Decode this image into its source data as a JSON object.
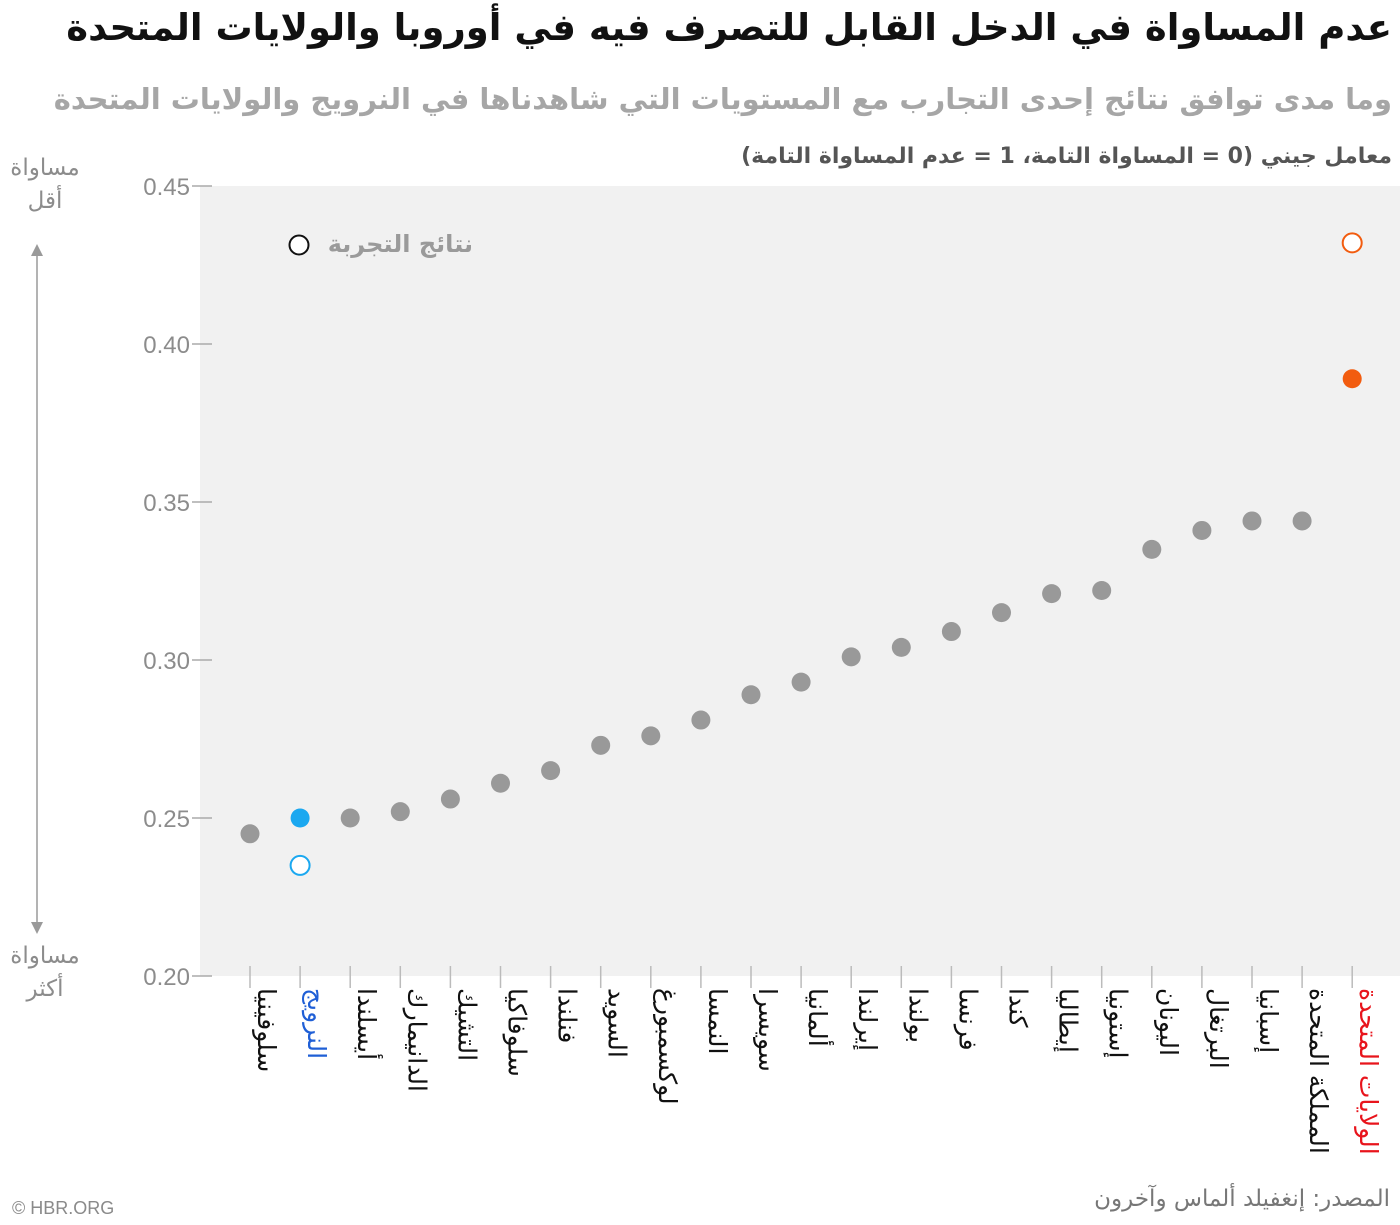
{
  "chart_data": {
    "type": "scatter",
    "title": "عدم المساواة في الدخل القابل للتصرف فيه في أوروبا والولايات المتحدة",
    "subtitle": "وما مدى توافق نتائج إحدى التجارب مع المستويات التي شاهدناها في النرويج والولايات المتحدة",
    "ylabel": "معامل جيني (0 = المساواة التامة، 1 = عدم المساواة التامة)",
    "ylim": [
      0.2,
      0.45
    ],
    "yticks": [
      "0.45",
      "0.40",
      "0.35",
      "0.30",
      "0.25",
      "0.20"
    ],
    "ytick_values": [
      0.45,
      0.4,
      0.35,
      0.3,
      0.25,
      0.2
    ],
    "grid": false,
    "legend": "top-left",
    "legend_label": "نتائج التجربة",
    "axis_top_label": [
      "مساواة",
      "أقل"
    ],
    "axis_bottom_label": [
      "مساواة",
      "أكثر"
    ],
    "categories": [
      "سلوفينيا",
      "النرويج",
      "أيسلندا",
      "الدانيمارك",
      "التشيك",
      "سلوفاكيا",
      "فنلندا",
      "السويد",
      "لوكسمبورغ",
      "النمسا",
      "سويسرا",
      "ألمانيا",
      "إيرلندا",
      "بولندا",
      "فرنسا",
      "كندا",
      "إيطاليا",
      "إستونيا",
      "اليونان",
      "البرتغال",
      "إسبانيا",
      "المملكة المتحدة",
      "الولايات المتحدة"
    ],
    "category_colors": [
      "#111111",
      "#1f5fd6",
      "#111111",
      "#111111",
      "#111111",
      "#111111",
      "#111111",
      "#111111",
      "#111111",
      "#111111",
      "#111111",
      "#111111",
      "#111111",
      "#111111",
      "#111111",
      "#111111",
      "#111111",
      "#111111",
      "#111111",
      "#111111",
      "#111111",
      "#111111",
      "#e8141c"
    ],
    "series": [
      {
        "name": "",
        "values": [
          0.245,
          0.25,
          0.25,
          0.252,
          0.256,
          0.261,
          0.265,
          0.273,
          0.276,
          0.281,
          0.289,
          0.293,
          0.301,
          0.304,
          0.309,
          0.315,
          0.321,
          0.322,
          0.335,
          0.341,
          0.344,
          0.344,
          0.389
        ],
        "colors": [
          "#999999",
          "#1ba8f0",
          "#999999",
          "#999999",
          "#999999",
          "#999999",
          "#999999",
          "#999999",
          "#999999",
          "#999999",
          "#999999",
          "#999999",
          "#999999",
          "#999999",
          "#999999",
          "#999999",
          "#999999",
          "#999999",
          "#999999",
          "#999999",
          "#999999",
          "#999999",
          "#f25c0f"
        ],
        "marker": "filled"
      },
      {
        "name": "نتائج التجربة",
        "x": [
          "النرويج",
          "الولايات المتحدة"
        ],
        "values": [
          0.235,
          0.432
        ],
        "colors": [
          "#1ba8f0",
          "#f25c0f"
        ],
        "marker": "hollow"
      }
    ]
  },
  "source": "المصدر: إنغفيلد ألماس وآخرون",
  "credit": "© HBR.ORG",
  "colors": {
    "plot_bg": "#f1f1f1",
    "tick_text": "#8c8c8c",
    "neutral_dot": "#999999"
  }
}
